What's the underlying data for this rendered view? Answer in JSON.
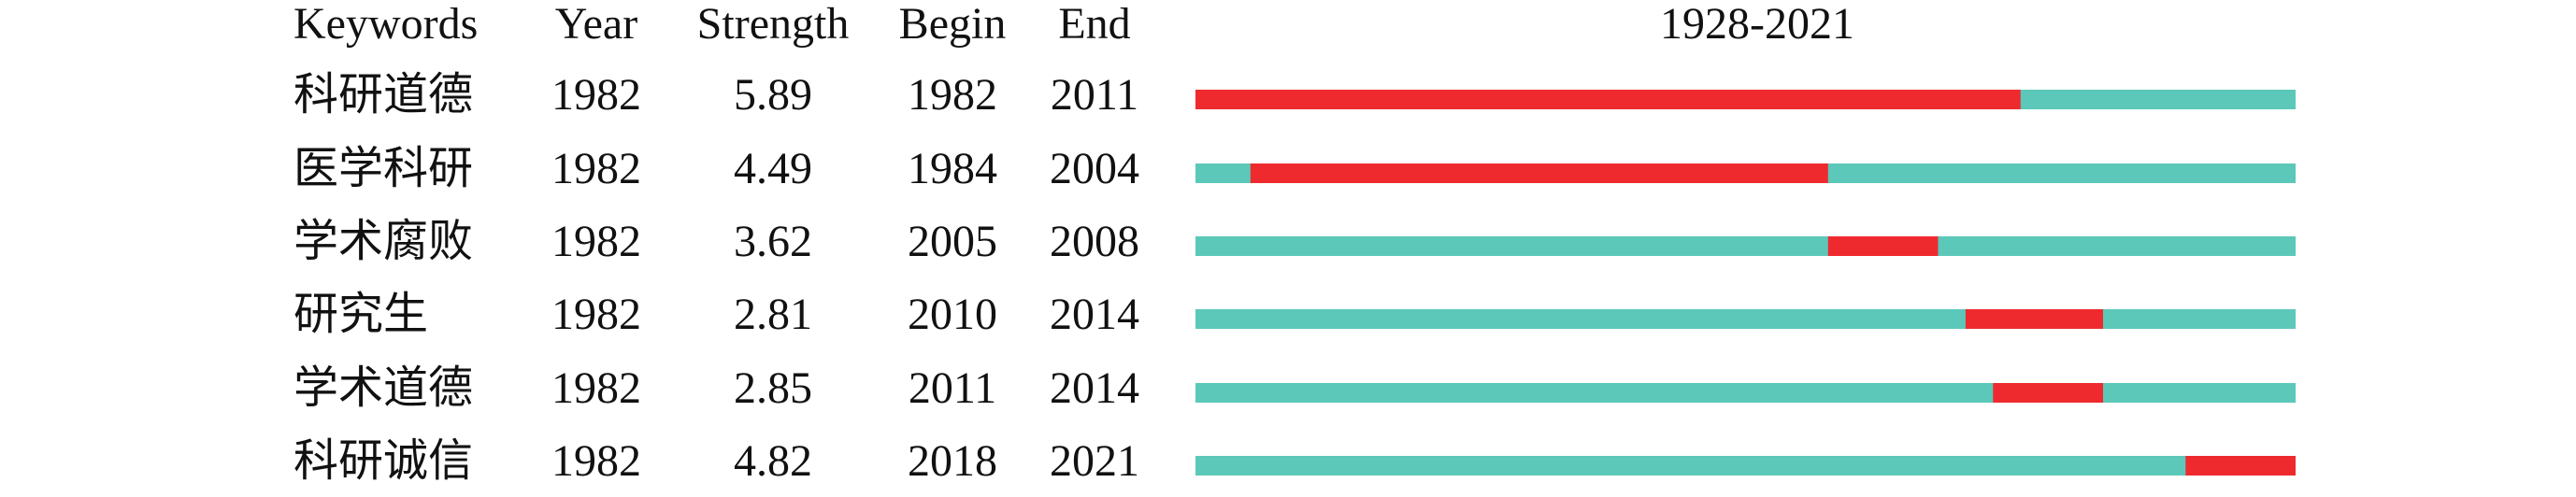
{
  "chart_data": {
    "type": "burst",
    "title": "1928-2021",
    "columns": [
      "Keywords",
      "Year",
      "Strength",
      "Begin",
      "End"
    ],
    "base_color": "#5cc8b9",
    "burst_color": "#ee2a2f",
    "rows": [
      {
        "keyword": "科研道德",
        "year": 1982,
        "strength": 5.89,
        "begin": 1982,
        "end": 2011
      },
      {
        "keyword": "医学科研",
        "year": 1982,
        "strength": 4.49,
        "begin": 1984,
        "end": 2004
      },
      {
        "keyword": "学术腐败",
        "year": 1982,
        "strength": 3.62,
        "begin": 2005,
        "end": 2008
      },
      {
        "keyword": "研究生",
        "year": 1982,
        "strength": 2.81,
        "begin": 2010,
        "end": 2014
      },
      {
        "keyword": "学术道德",
        "year": 1982,
        "strength": 2.85,
        "begin": 2011,
        "end": 2014
      },
      {
        "keyword": "科研诚信",
        "year": 1982,
        "strength": 4.82,
        "begin": 2018,
        "end": 2021
      }
    ]
  }
}
